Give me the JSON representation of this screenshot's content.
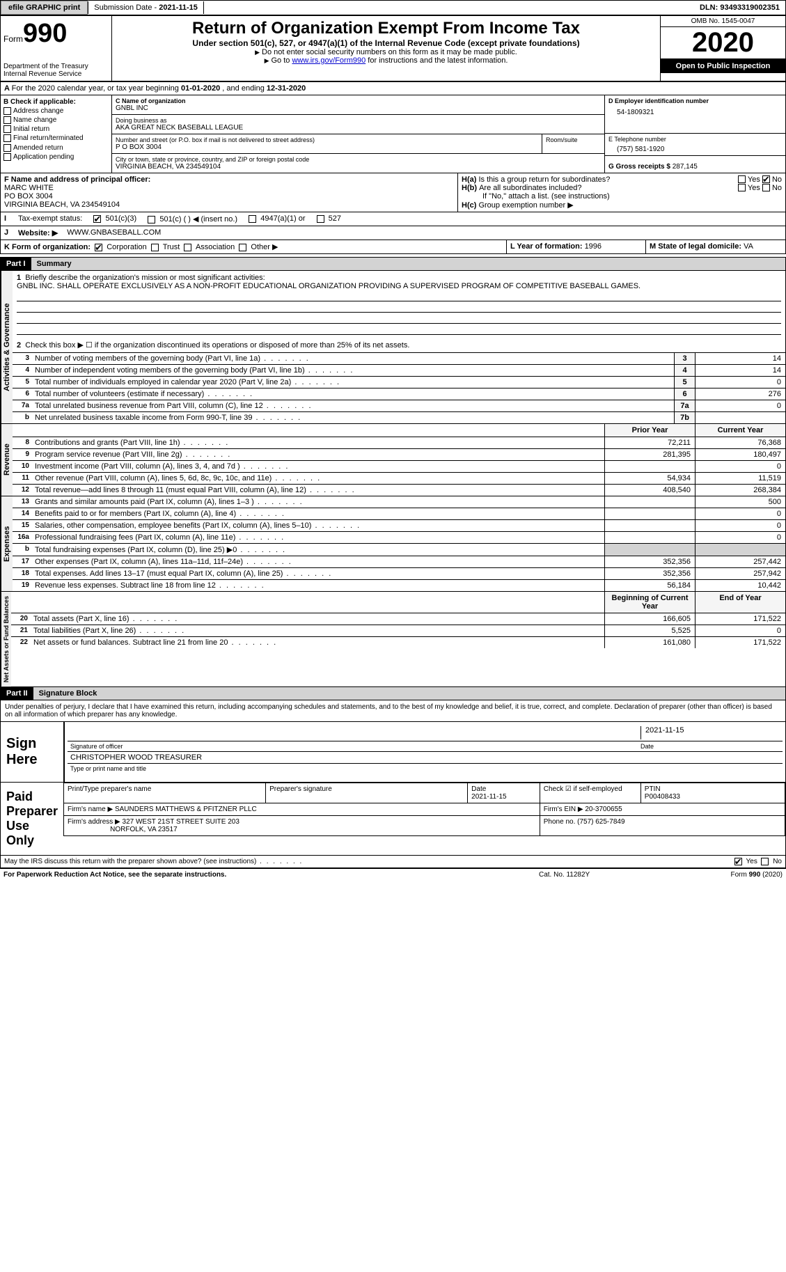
{
  "top_bar": {
    "efile_btn": "efile GRAPHIC print",
    "sub_date_label": "Submission Date - ",
    "sub_date": "2021-11-15",
    "dln_label": "DLN: ",
    "dln": "93493319002351"
  },
  "header": {
    "form_word": "Form",
    "form_num": "990",
    "dept": "Department of the Treasury\nInternal Revenue Service",
    "title": "Return of Organization Exempt From Income Tax",
    "subtitle": "Under section 501(c), 527, or 4947(a)(1) of the Internal Revenue Code (except private foundations)",
    "note1": "Do not enter social security numbers on this form as it may be made public.",
    "note2_pre": "Go to ",
    "note2_link": "www.irs.gov/Form990",
    "note2_post": " for instructions and the latest information.",
    "omb": "OMB No. 1545-0047",
    "year": "2020",
    "open": "Open to Public Inspection"
  },
  "line_a": {
    "text": "For the 2020 calendar year, or tax year beginning ",
    "begin": "01-01-2020",
    "mid": " , and ending ",
    "end": "12-31-2020"
  },
  "box_b": {
    "label": "B Check if applicable:",
    "items": [
      "Address change",
      "Name change",
      "Initial return",
      "Final return/terminated",
      "Amended return",
      "Application pending"
    ]
  },
  "box_c": {
    "name_label": "C Name of organization",
    "name": "GNBL INC",
    "dba_label": "Doing business as",
    "dba": "AKA GREAT NECK BASEBALL LEAGUE",
    "street_label": "Number and street (or P.O. box if mail is not delivered to street address)",
    "room_label": "Room/suite",
    "street": "P O BOX 3004",
    "city_label": "City or town, state or province, country, and ZIP or foreign postal code",
    "city": "VIRGINIA BEACH, VA  234549104"
  },
  "box_d": {
    "label": "D Employer identification number",
    "value": "54-1809321"
  },
  "box_e": {
    "label": "E Telephone number",
    "value": "(757) 581-1920"
  },
  "box_g": {
    "label": "G Gross receipts $ ",
    "value": "287,145"
  },
  "box_f": {
    "label": "F Name and address of principal officer:",
    "name": "MARC WHITE",
    "addr1": "PO BOX 3004",
    "addr2": "VIRGINIA BEACH, VA  234549104"
  },
  "box_h": {
    "ha": "Is this a group return for subordinates?",
    "hb": "Are all subordinates included?",
    "hb_note": "If \"No,\" attach a list. (see instructions)",
    "hc": "Group exemption number ▶",
    "yes": "Yes",
    "no": "No"
  },
  "line_i": {
    "label": "Tax-exempt status:",
    "opts": [
      "501(c)(3)",
      "501(c) (  ) ◀ (insert no.)",
      "4947(a)(1) or",
      "527"
    ]
  },
  "line_j": {
    "label": "Website: ▶",
    "value": "WWW.GNBASEBALL.COM"
  },
  "line_k": {
    "label": "K Form of organization:",
    "opts": [
      "Corporation",
      "Trust",
      "Association",
      "Other ▶"
    ]
  },
  "line_l": {
    "label": "L Year of formation: ",
    "value": "1996"
  },
  "line_m": {
    "label": "M State of legal domicile: ",
    "value": "VA"
  },
  "part1": {
    "num": "Part I",
    "title": "Summary"
  },
  "summary": {
    "q1_label": "Briefly describe the organization's mission or most significant activities:",
    "q1_num": "1",
    "mission": "GNBL INC. SHALL OPERATE EXCLUSIVELY AS A NON-PROFIT EDUCATIONAL ORGANIZATION PROVIDING A SUPERVISED PROGRAM OF COMPETITIVE BASEBALL GAMES.",
    "q2_num": "2",
    "q2": "Check this box ▶ ☐  if the organization discontinued its operations or disposed of more than 25% of its net assets.",
    "rows_gov": [
      {
        "n": "3",
        "t": "Number of voting members of the governing body (Part VI, line 1a)",
        "box": "3",
        "v": "14"
      },
      {
        "n": "4",
        "t": "Number of independent voting members of the governing body (Part VI, line 1b)",
        "box": "4",
        "v": "14"
      },
      {
        "n": "5",
        "t": "Total number of individuals employed in calendar year 2020 (Part V, line 2a)",
        "box": "5",
        "v": "0"
      },
      {
        "n": "6",
        "t": "Total number of volunteers (estimate if necessary)",
        "box": "6",
        "v": "276"
      },
      {
        "n": "7a",
        "t": "Total unrelated business revenue from Part VIII, column (C), line 12",
        "box": "7a",
        "v": "0"
      },
      {
        "n": "b",
        "t": "Net unrelated business taxable income from Form 990-T, line 39",
        "box": "7b",
        "v": ""
      }
    ],
    "col_py": "Prior Year",
    "col_cy": "Current Year",
    "revenue_rows": [
      {
        "n": "8",
        "t": "Contributions and grants (Part VIII, line 1h)",
        "py": "72,211",
        "cy": "76,368"
      },
      {
        "n": "9",
        "t": "Program service revenue (Part VIII, line 2g)",
        "py": "281,395",
        "cy": "180,497"
      },
      {
        "n": "10",
        "t": "Investment income (Part VIII, column (A), lines 3, 4, and 7d )",
        "py": "",
        "cy": "0"
      },
      {
        "n": "11",
        "t": "Other revenue (Part VIII, column (A), lines 5, 6d, 8c, 9c, 10c, and 11e)",
        "py": "54,934",
        "cy": "11,519"
      },
      {
        "n": "12",
        "t": "Total revenue—add lines 8 through 11 (must equal Part VIII, column (A), line 12)",
        "py": "408,540",
        "cy": "268,384"
      }
    ],
    "expense_rows": [
      {
        "n": "13",
        "t": "Grants and similar amounts paid (Part IX, column (A), lines 1–3 )",
        "py": "",
        "cy": "500"
      },
      {
        "n": "14",
        "t": "Benefits paid to or for members (Part IX, column (A), line 4)",
        "py": "",
        "cy": "0"
      },
      {
        "n": "15",
        "t": "Salaries, other compensation, employee benefits (Part IX, column (A), lines 5–10)",
        "py": "",
        "cy": "0"
      },
      {
        "n": "16a",
        "t": "Professional fundraising fees (Part IX, column (A), line 11e)",
        "py": "",
        "cy": "0"
      },
      {
        "n": "b",
        "t": "Total fundraising expenses (Part IX, column (D), line 25) ▶0",
        "py": "shaded",
        "cy": "shaded"
      },
      {
        "n": "17",
        "t": "Other expenses (Part IX, column (A), lines 11a–11d, 11f–24e)",
        "py": "352,356",
        "cy": "257,442"
      },
      {
        "n": "18",
        "t": "Total expenses. Add lines 13–17 (must equal Part IX, column (A), line 25)",
        "py": "352,356",
        "cy": "257,942"
      },
      {
        "n": "19",
        "t": "Revenue less expenses. Subtract line 18 from line 12",
        "py": "56,184",
        "cy": "10,442"
      }
    ],
    "col_boy": "Beginning of Current Year",
    "col_eoy": "End of Year",
    "asset_rows": [
      {
        "n": "20",
        "t": "Total assets (Part X, line 16)",
        "py": "166,605",
        "cy": "171,522"
      },
      {
        "n": "21",
        "t": "Total liabilities (Part X, line 26)",
        "py": "5,525",
        "cy": "0"
      },
      {
        "n": "22",
        "t": "Net assets or fund balances. Subtract line 21 from line 20",
        "py": "161,080",
        "cy": "171,522"
      }
    ],
    "side_gov": "Activities & Governance",
    "side_rev": "Revenue",
    "side_exp": "Expenses",
    "side_net": "Net Assets or Fund Balances"
  },
  "part2": {
    "num": "Part II",
    "title": "Signature Block"
  },
  "penalties": "Under penalties of perjury, I declare that I have examined this return, including accompanying schedules and statements, and to the best of my knowledge and belief, it is true, correct, and complete. Declaration of preparer (other than officer) is based on all information of which preparer has any knowledge.",
  "sign": {
    "label": "Sign Here",
    "sig_officer": "Signature of officer",
    "date": "Date",
    "date_val": "2021-11-15",
    "name": "CHRISTOPHER WOOD TREASURER",
    "name_label": "Type or print name and title"
  },
  "prep": {
    "label": "Paid Preparer Use Only",
    "h_name": "Print/Type preparer's name",
    "h_sig": "Preparer's signature",
    "h_date": "Date",
    "date_val": "2021-11-15",
    "h_check": "Check ☑ if self-employed",
    "h_ptin": "PTIN",
    "ptin": "P00408433",
    "firm_label": "Firm's name    ▶",
    "firm": "SAUNDERS MATTHEWS & PFITZNER PLLC",
    "ein_label": "Firm's EIN ▶",
    "ein": "20-3700655",
    "addr_label": "Firm's address ▶",
    "addr": "327 WEST 21ST STREET SUITE 203",
    "addr2": "NORFOLK, VA  23517",
    "phone_label": "Phone no. ",
    "phone": "(757) 625-7849"
  },
  "discuss": "May the IRS discuss this return with the preparer shown above? (see instructions)",
  "footer": {
    "left": "For Paperwork Reduction Act Notice, see the separate instructions.",
    "mid": "Cat. No. 11282Y",
    "right": "Form 990 (2020)"
  },
  "colors": {
    "black": "#000000",
    "grey_btn": "#d3d3d3",
    "link": "#0000cd"
  }
}
